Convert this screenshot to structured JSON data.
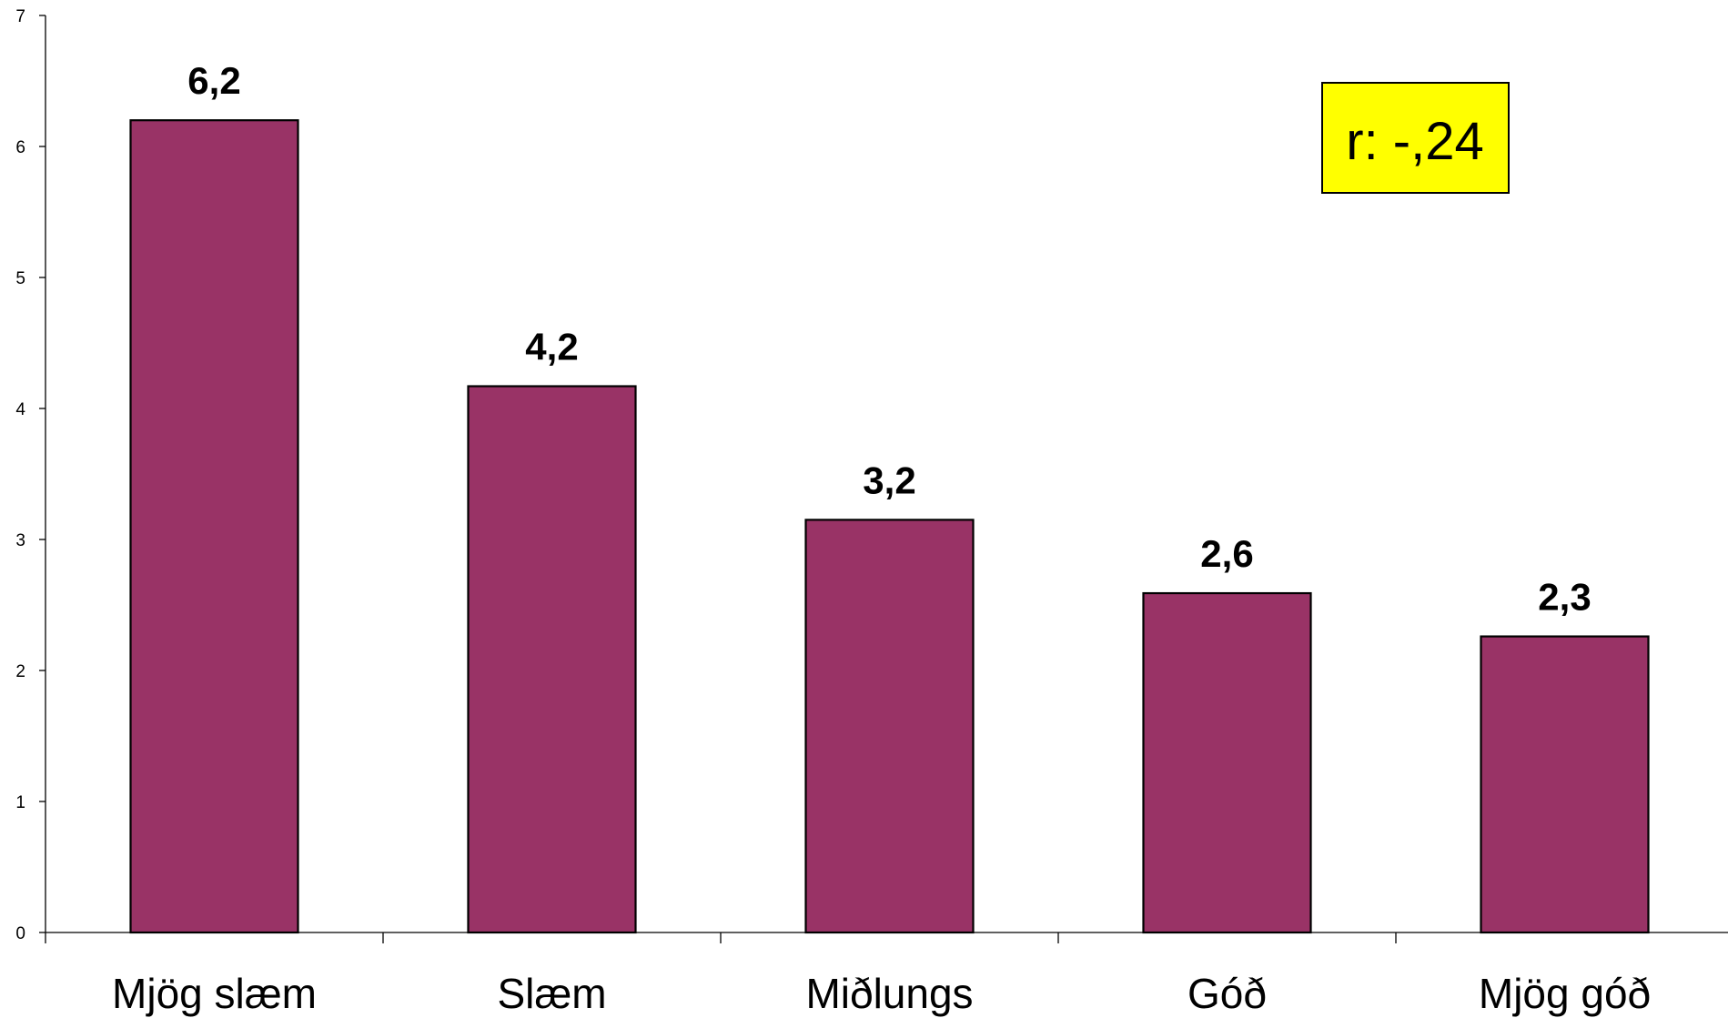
{
  "chart_data": {
    "type": "bar",
    "title": "",
    "xlabel": "",
    "ylabel": "",
    "categories": [
      "Mjög slæm",
      "Slæm",
      "Miðlungs",
      "Góð",
      "Mjög góð"
    ],
    "values": [
      6.2,
      4.17,
      3.15,
      2.59,
      2.26
    ],
    "data_labels": [
      "6,2",
      "4,2",
      "3,2",
      "2,6",
      "2,3"
    ],
    "ylim": [
      0,
      7
    ],
    "yticks": [
      0,
      1,
      2,
      3,
      4,
      5,
      6,
      7
    ],
    "ytick_labels": [
      "0",
      "1",
      "2",
      "3",
      "4",
      "5",
      "6",
      "7"
    ],
    "grid": false,
    "legend": "none",
    "annotation": {
      "text": "r: -,24",
      "placement": "top-right"
    },
    "colors": {
      "bar": "#993366",
      "annotation_bg": "#ffff00"
    }
  }
}
